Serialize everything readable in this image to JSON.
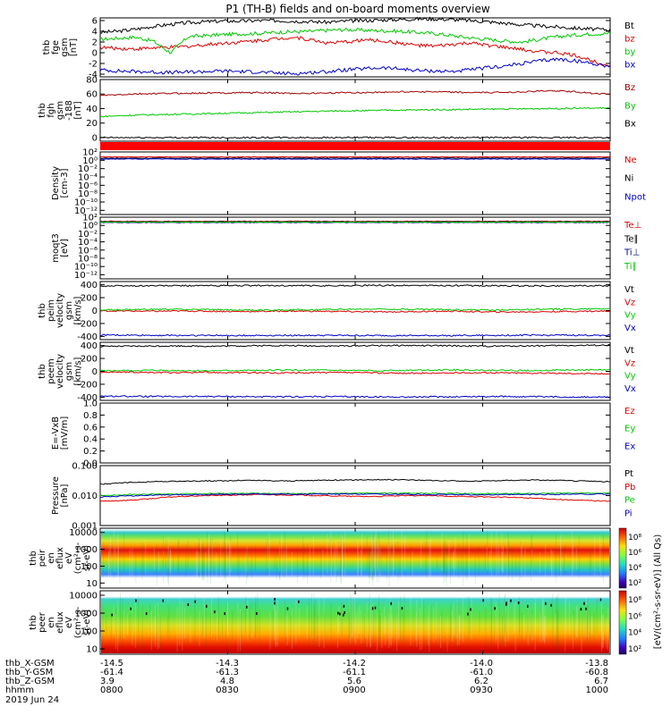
{
  "title": "P1 (TH-B) fields and on-board moments overview",
  "date_label": "2019 Jun 24",
  "colors": {
    "black": "#000000",
    "red": "#e00000",
    "green": "#00c800",
    "blue": "#0000c8",
    "darkred": "#a00000",
    "darkblue": "#000080"
  },
  "chart_data": [
    {
      "type": "line",
      "ylabel": [
        "thb",
        "fge",
        "gsm",
        "[nT]"
      ],
      "ylim": [
        -4.5,
        6.5
      ],
      "yticks": [
        -4,
        -2,
        0,
        2,
        4,
        6
      ],
      "series": [
        {
          "name": "Bt",
          "color": "#000000",
          "values": [
            3.8,
            4.0,
            4.4,
            4.9,
            5.3,
            5.6,
            5.8,
            5.9,
            5.9,
            6.0,
            6.0,
            5.9,
            5.8,
            5.7,
            5.9,
            6.0,
            6.1,
            6.2,
            6.3,
            6.3,
            6.2,
            6.0,
            5.8,
            5.5,
            5.2,
            5.0,
            4.8,
            4.6,
            4.4,
            4.3
          ]
        },
        {
          "name": "bz",
          "color": "#e00000",
          "values": [
            1.0,
            0.8,
            0.7,
            0.9,
            1.0,
            1.2,
            1.5,
            1.8,
            2.0,
            2.3,
            2.6,
            2.9,
            2.4,
            1.8,
            2.0,
            2.4,
            2.2,
            1.8,
            1.4,
            1.2,
            1.5,
            1.8,
            1.4,
            1.0,
            0.6,
            0.2,
            0.0,
            -0.5,
            -1.5,
            -2.5
          ]
        },
        {
          "name": "by",
          "color": "#00c800",
          "values": [
            2.5,
            2.7,
            2.9,
            2.2,
            0.0,
            3.0,
            3.2,
            3.4,
            3.5,
            3.6,
            3.8,
            3.9,
            4.0,
            4.2,
            4.3,
            4.2,
            4.1,
            4.0,
            3.8,
            3.6,
            3.2,
            2.8,
            2.5,
            2.2,
            2.0,
            2.5,
            3.0,
            3.3,
            3.5,
            3.6
          ]
        },
        {
          "name": "bx",
          "color": "#0000c8",
          "values": [
            -3.2,
            -3.4,
            -3.5,
            -3.6,
            -3.7,
            -3.6,
            -3.5,
            -3.4,
            -3.5,
            -3.6,
            -3.8,
            -3.9,
            -3.7,
            -3.5,
            -3.2,
            -3.0,
            -2.8,
            -3.0,
            -3.3,
            -3.4,
            -3.5,
            -3.2,
            -2.8,
            -2.5,
            -2.0,
            -1.5,
            -1.2,
            -1.5,
            -2.0,
            -2.5
          ]
        }
      ]
    },
    {
      "type": "line",
      "ylabel": [
        "thb",
        "fgh",
        "gsm",
        "-188",
        "[nT]"
      ],
      "ylim": [
        -5,
        80
      ],
      "yticks": [
        0,
        20,
        40,
        60,
        80
      ],
      "series": [
        {
          "name": "Bz",
          "color": "#a00000",
          "values": [
            58.0,
            59.0,
            60.0,
            60.5,
            61.0,
            61.0,
            61.5,
            61.5,
            62.0,
            62.0,
            61.5,
            61.0,
            61.0,
            61.5,
            62.0,
            62.0,
            62.5,
            63.0,
            63.5,
            63.0,
            62.5,
            62.0,
            62.0,
            62.5,
            63.0,
            64.0,
            64.5,
            63.0,
            61.0,
            60.0
          ]
        },
        {
          "name": "By",
          "color": "#00c800",
          "values": [
            29.0,
            30.0,
            31.0,
            31.5,
            32.0,
            32.5,
            33.0,
            33.5,
            34.0,
            34.5,
            35.0,
            35.5,
            36.0,
            36.5,
            37.0,
            37.0,
            37.5,
            38.0,
            38.0,
            38.5,
            38.5,
            39.0,
            39.0,
            39.5,
            39.5,
            40.0,
            40.0,
            40.5,
            40.5,
            41.0
          ]
        },
        {
          "name": "Bx",
          "color": "#000000",
          "values": [
            0,
            0,
            0,
            0,
            0,
            0,
            0,
            0,
            0,
            0,
            0,
            0,
            0,
            0,
            0,
            0,
            0,
            0,
            0,
            0,
            0,
            0,
            0,
            0,
            0,
            0,
            0,
            0,
            0,
            0
          ]
        }
      ]
    },
    {
      "type": "line",
      "ylabel": [
        "Density",
        "[cm-3]"
      ],
      "yscale": "log",
      "ylim": [
        1e-13,
        100
      ],
      "yticks": [
        "10²",
        "10⁰",
        "10⁻²",
        "10⁻⁴",
        "10⁻⁶",
        "10⁻⁸",
        "10⁻¹⁰",
        "10⁻¹²"
      ],
      "ytick_values": [
        2,
        0,
        -2,
        -4,
        -6,
        -8,
        -10,
        -12
      ],
      "series": [
        {
          "name": "Ne",
          "color": "#e00000",
          "log_value": 0.8
        },
        {
          "name": "Ni",
          "color": "#000000",
          "log_value": 0.5
        },
        {
          "name": "Npot",
          "color": "#0000c8",
          "log_value": 0.3
        }
      ]
    },
    {
      "type": "line",
      "ylabel": [
        "moqt3",
        "[eV]"
      ],
      "yscale": "log",
      "ylim": [
        1e-13,
        100
      ],
      "yticks": [
        "10²",
        "10⁰",
        "10⁻²",
        "10⁻⁴",
        "10⁻⁶",
        "10⁻⁸",
        "10⁻¹⁰",
        "10⁻¹²"
      ],
      "ytick_values": [
        2,
        0,
        -2,
        -4,
        -6,
        -8,
        -10,
        -12
      ],
      "series": [
        {
          "name": "Te⊥",
          "color": "#e00000",
          "log_value": 1.0
        },
        {
          "name": "Te∥",
          "color": "#000000",
          "log_value": 0.9
        },
        {
          "name": "Ti⊥",
          "color": "#000080",
          "log_value": 0.7
        },
        {
          "name": "Ti∥",
          "color": "#00c800",
          "log_value": 0.8
        }
      ]
    },
    {
      "type": "line",
      "ylabel": [
        "thb",
        "peim",
        "velocity",
        "gsm",
        "[km/s]"
      ],
      "ylim": [
        -450,
        450
      ],
      "yticks": [
        -400,
        -200,
        0,
        200,
        400
      ],
      "series": [
        {
          "name": "Vt",
          "color": "#000000",
          "values": [
            380,
            382,
            384,
            385,
            385,
            386,
            386,
            387,
            387,
            386,
            386,
            385,
            385,
            386,
            387,
            388,
            388,
            389,
            389,
            388,
            387,
            386,
            385,
            384,
            383,
            382,
            382,
            383,
            384,
            385
          ]
        },
        {
          "name": "Vz",
          "color": "#e00000",
          "values": [
            -5,
            -6,
            -8,
            -10,
            -8,
            -6,
            -10,
            -12,
            -15,
            -12,
            -10,
            -8,
            -10,
            -12,
            -15,
            -18,
            -20,
            -18,
            -15,
            -12,
            -10,
            -15,
            -20,
            -22,
            -20,
            -18,
            -15,
            -12,
            -10,
            -8
          ]
        },
        {
          "name": "Vy",
          "color": "#00c800",
          "values": [
            10,
            12,
            15,
            18,
            20,
            18,
            15,
            12,
            10,
            8,
            10,
            12,
            15,
            18,
            20,
            22,
            25,
            22,
            20,
            18,
            15,
            12,
            10,
            12,
            15,
            18,
            22,
            25,
            28,
            30
          ]
        },
        {
          "name": "Vx",
          "color": "#0000c8",
          "values": [
            -378,
            -380,
            -382,
            -383,
            -384,
            -385,
            -385,
            -386,
            -386,
            -385,
            -385,
            -384,
            -384,
            -385,
            -386,
            -387,
            -387,
            -388,
            -388,
            -387,
            -386,
            -385,
            -384,
            -383,
            -382,
            -381,
            -381,
            -382,
            -383,
            -384
          ]
        }
      ]
    },
    {
      "type": "line",
      "ylabel": [
        "thb",
        "peem",
        "velocity",
        "gsm",
        "[km/s]"
      ],
      "ylim": [
        -450,
        450
      ],
      "yticks": [
        -400,
        -200,
        0,
        200,
        400
      ],
      "series": [
        {
          "name": "Vt",
          "color": "#000000",
          "values": [
            385,
            388,
            390,
            392,
            395,
            393,
            390,
            392,
            395,
            398,
            400,
            398,
            395,
            393,
            395,
            398,
            400,
            402,
            400,
            398,
            395,
            393,
            390,
            392,
            395,
            398,
            400,
            402,
            404,
            405
          ]
        },
        {
          "name": "Vz",
          "color": "#e00000",
          "values": [
            -10,
            -12,
            -15,
            -18,
            -20,
            -18,
            -15,
            -18,
            -20,
            -22,
            -25,
            -22,
            -20,
            -18,
            -20,
            -22,
            -25,
            -28,
            -30,
            -28,
            -25,
            -22,
            -20,
            -22,
            -25,
            -28,
            -30,
            -32,
            -35,
            -38
          ]
        },
        {
          "name": "Vy",
          "color": "#00c800",
          "values": [
            8,
            10,
            12,
            15,
            12,
            10,
            8,
            10,
            12,
            15,
            18,
            20,
            18,
            15,
            12,
            10,
            12,
            15,
            18,
            20,
            22,
            20,
            18,
            15,
            12,
            15,
            18,
            20,
            22,
            25
          ]
        },
        {
          "name": "Vx",
          "color": "#0000c8",
          "values": [
            -383,
            -385,
            -387,
            -389,
            -391,
            -390,
            -388,
            -389,
            -391,
            -393,
            -395,
            -394,
            -392,
            -391,
            -392,
            -394,
            -396,
            -397,
            -396,
            -395,
            -393,
            -391,
            -389,
            -390,
            -392,
            -394,
            -396,
            -398,
            -399,
            -400
          ]
        }
      ]
    },
    {
      "type": "line",
      "ylabel": [
        "E=-VxB",
        "[mV/m]"
      ],
      "ylim": [
        0,
        1
      ],
      "yticks": [
        "0.0",
        "0.2",
        "0.4",
        "0.6",
        "0.8",
        "1.0"
      ],
      "ytick_values": [
        0,
        0.2,
        0.4,
        0.6,
        0.8,
        1.0
      ],
      "series": [
        {
          "name": "Ez",
          "color": "#e00000",
          "values": []
        },
        {
          "name": "Ey",
          "color": "#00c800",
          "values": []
        },
        {
          "name": "Ex",
          "color": "#0000c8",
          "values": []
        }
      ]
    },
    {
      "type": "line",
      "ylabel": [
        "Pressure",
        "[nPa]"
      ],
      "yscale": "log",
      "ylim": [
        0.001,
        0.1
      ],
      "yticks": [
        "0.100",
        "0.010",
        "0.001"
      ],
      "ytick_values": [
        -1,
        -2,
        -3
      ],
      "series": [
        {
          "name": "Pt",
          "color": "#000000",
          "values": [
            0.024,
            0.026,
            0.028,
            0.029,
            0.03,
            0.03,
            0.031,
            0.031,
            0.032,
            0.032,
            0.031,
            0.031,
            0.032,
            0.033,
            0.033,
            0.034,
            0.034,
            0.034,
            0.033,
            0.032,
            0.031,
            0.03,
            0.031,
            0.032,
            0.033,
            0.033,
            0.032,
            0.031,
            0.03,
            0.029
          ]
        },
        {
          "name": "Pb",
          "color": "#e00000",
          "values": [
            0.0065,
            0.0068,
            0.0072,
            0.008,
            0.009,
            0.0095,
            0.01,
            0.0102,
            0.0105,
            0.0108,
            0.0106,
            0.0104,
            0.0102,
            0.0098,
            0.0095,
            0.0093,
            0.0095,
            0.0098,
            0.01,
            0.0098,
            0.0095,
            0.0092,
            0.009,
            0.0088,
            0.0085,
            0.008,
            0.0075,
            0.007,
            0.0068,
            0.0065
          ]
        },
        {
          "name": "Pe",
          "color": "#00c800",
          "values": [
            0.01,
            0.0105,
            0.011,
            0.0112,
            0.0114,
            0.0115,
            0.0116,
            0.0117,
            0.0118,
            0.0118,
            0.0117,
            0.0116,
            0.0117,
            0.0118,
            0.0119,
            0.012,
            0.012,
            0.0121,
            0.012,
            0.0119,
            0.0118,
            0.0117,
            0.0116,
            0.0117,
            0.0118,
            0.0119,
            0.012,
            0.0121,
            0.0122,
            0.0122
          ]
        },
        {
          "name": "Pi",
          "color": "#0000c8",
          "values": [
            0.009,
            0.0095,
            0.01,
            0.0103,
            0.0105,
            0.0107,
            0.0108,
            0.011,
            0.0111,
            0.0112,
            0.0111,
            0.011,
            0.0111,
            0.0112,
            0.0112,
            0.0113,
            0.0112,
            0.0111,
            0.011,
            0.0109,
            0.0108,
            0.0107,
            0.0106,
            0.0107,
            0.0108,
            0.0109,
            0.011,
            0.0111,
            0.0112,
            0.0112
          ]
        }
      ]
    },
    {
      "type": "heatmap",
      "ylabel": [
        "thb",
        "peir",
        "en",
        "eflux",
        "eV",
        "(cm²-s-",
        "sr-eV)"
      ],
      "yticks": [
        "10000",
        "1000",
        "100",
        "10"
      ],
      "ytick_values": [
        4,
        3,
        2,
        1
      ],
      "colorbar_ticks": [
        "10⁸",
        "10⁶",
        "10⁴",
        "10²"
      ],
      "colorbar_label": "[eV/(cm²-s-sr-eV)] (All Qs)"
    },
    {
      "type": "heatmap",
      "ylabel": [
        "thb",
        "peer",
        "en",
        "eflux",
        "eV",
        "(cm²-s-",
        "sr-eV)"
      ],
      "yticks": [
        "10000",
        "1000",
        "100",
        "10"
      ],
      "ytick_values": [
        4,
        3,
        2,
        1
      ],
      "colorbar_ticks": [
        "10⁸",
        "10⁶",
        "10⁴",
        "10²"
      ],
      "colorbar_label": "[eV/(cm²-s-sr-eV)] (All Qs)"
    }
  ],
  "ephemeris": {
    "labels": [
      "thb_X-GSM",
      "thb_Y-GSM",
      "thb_Z-GSM",
      "hhmm"
    ],
    "columns": [
      [
        "-14.5",
        "-61.4",
        "3.9",
        "0800"
      ],
      [
        "-14.3",
        "-61.3",
        "4.8",
        "0830"
      ],
      [
        "-14.2",
        "-61.1",
        "5.6",
        "0900"
      ],
      [
        "-14.0",
        "-61.0",
        "6.2",
        "0930"
      ],
      [
        "-13.8",
        "-60.8",
        "6.7",
        "1000"
      ]
    ]
  }
}
